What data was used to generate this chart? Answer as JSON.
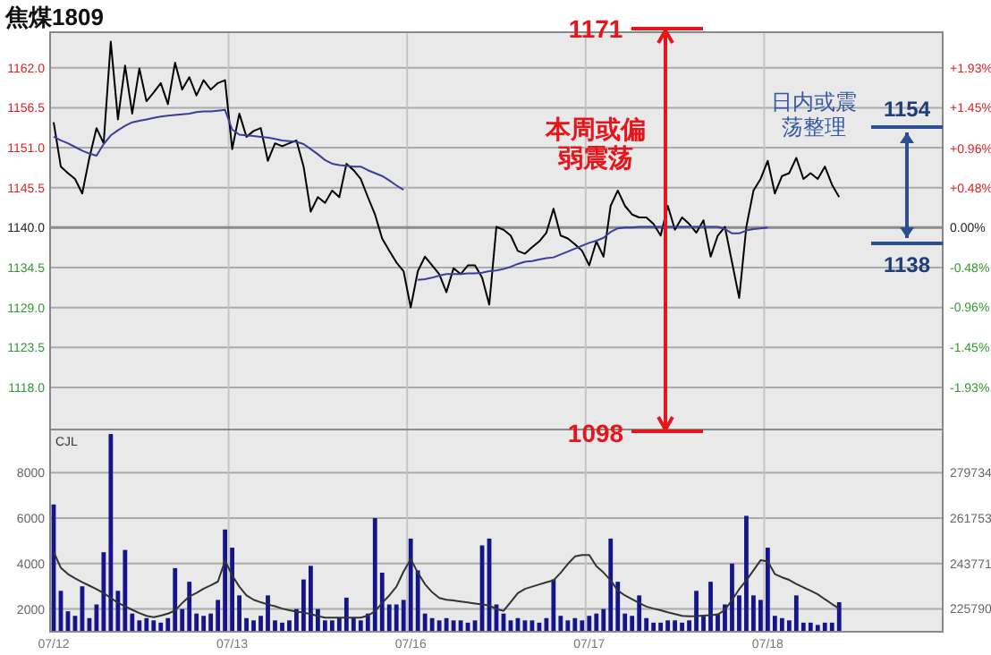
{
  "chart_data": [
    {
      "type": "line",
      "title": "焦煤1809",
      "categories": [
        null,
        null,
        null,
        null,
        null,
        null,
        null,
        null,
        null,
        null,
        null,
        null,
        null,
        null,
        null,
        null,
        null,
        null,
        null,
        null,
        null,
        null,
        null,
        null,
        null,
        null,
        null,
        null,
        null,
        null,
        null,
        null,
        null,
        null,
        null,
        null,
        null,
        null,
        null,
        null,
        null,
        null,
        null,
        null,
        null,
        null,
        null,
        null,
        null,
        null,
        null,
        null,
        null,
        null,
        null,
        null,
        null,
        null,
        null,
        null,
        null,
        null,
        null,
        null,
        null,
        null,
        null,
        null,
        null,
        null,
        null,
        null,
        null,
        null,
        null,
        null,
        null,
        null,
        null,
        null,
        null,
        null,
        null,
        null,
        null,
        null,
        null,
        null,
        null,
        null,
        null,
        null,
        null,
        null,
        null,
        null,
        null,
        null,
        null,
        null,
        null,
        null,
        null,
        null,
        null,
        null,
        null,
        null,
        null,
        null,
        null,
        null,
        null,
        null,
        null,
        null,
        null,
        null,
        null,
        null,
        null,
        null,
        null,
        null,
        null
      ],
      "ylim": [
        1112.2,
        1166.9
      ],
      "yticks": [
        {
          "value": 1162,
          "label": "1162.0"
        },
        {
          "value": 1156.5,
          "label": "1156.5"
        },
        {
          "value": 1151,
          "label": "1151.0"
        },
        {
          "value": 1145.5,
          "label": "1145.5"
        },
        {
          "value": 1140,
          "label": "1140.0"
        },
        {
          "value": 1134.5,
          "label": "1134.5"
        },
        {
          "value": 1129,
          "label": "1129.0"
        },
        {
          "value": 1123.5,
          "label": "1123.5"
        },
        {
          "value": 1118,
          "label": "1118.0"
        }
      ],
      "y2lim": [
        -2.44,
        2.36
      ],
      "y2ticks": [
        {
          "value": 1.93,
          "label": "+1.93%"
        },
        {
          "value": 1.45,
          "label": "+1.45%"
        },
        {
          "value": 0.96,
          "label": "+0.96%"
        },
        {
          "value": 0.48,
          "label": "+0.48%"
        },
        {
          "value": 0,
          "label": "0.00%"
        },
        {
          "value": -0.48,
          "label": "-0.48%"
        },
        {
          "value": -0.96,
          "label": "-0.96%"
        },
        {
          "value": -1.45,
          "label": "-1.45%"
        },
        {
          "value": -1.93,
          "label": "-1.93%"
        }
      ],
      "grid": true,
      "ref_lines": [
        {
          "axis": "y",
          "value": 1140,
          "color": "#8c8c8c"
        }
      ],
      "annotations": [
        "1171",
        "本周或偏弱震荡",
        "1098",
        "日内或震荡整理",
        "1154",
        "1138"
      ],
      "series": [
        {
          "color": "#000000",
          "values": [
            1154.5,
            1148.4,
            1147.5,
            1146.7,
            1144.7,
            1149.6,
            1153.7,
            1151.6,
            1165.6,
            1154.9,
            1162.3,
            1155.7,
            1161.9,
            1157.4,
            1158.6,
            1159.9,
            1157.0,
            1162.7,
            1159.0,
            1160.7,
            1158.2,
            1160.3,
            1159.0,
            1159.9,
            1160.3,
            1150.8,
            1155.7,
            1152.5,
            1153.3,
            1153.7,
            1149.2,
            1151.6,
            1151.2,
            1151.6,
            1152.0,
            1148.4,
            1142.2,
            1144.2,
            1143.4,
            1145.1,
            1144.2,
            1148.8,
            1147.9,
            1146.7,
            1144.2,
            1141.8,
            1138.5,
            1136.8,
            1135.2,
            1134.0,
            1129.0,
            1134.0,
            1136.0,
            1134.8,
            1133.6,
            1131.1,
            1134.4,
            1133.6,
            1134.8,
            1134.8,
            1133.1,
            1129.4,
            1140.1,
            1139.7,
            1138.9,
            1136.8,
            1136.4,
            1137.3,
            1138.1,
            1139.3,
            1142.6,
            1138.9,
            1138.5,
            1137.7,
            1136.8,
            1134.8,
            1138.1,
            1136.0,
            1143.0,
            1145.1,
            1143.0,
            1141.8,
            1141.4,
            1141.4,
            1140.5,
            1138.9,
            1143.0,
            1139.7,
            1141.4,
            1140.5,
            1139.3,
            1141.0,
            1136.0,
            1138.9,
            1140.1,
            1135.2,
            1130.3,
            1140.1,
            1145.1,
            1146.7,
            1149.2,
            1144.7,
            1147.1,
            1147.5,
            1149.6,
            1146.7,
            1147.5,
            1146.7,
            1148.4,
            1145.9,
            1144.2,
            null,
            null,
            null,
            null,
            null,
            null,
            null,
            null,
            null,
            null,
            null,
            null,
            null,
            null
          ]
        },
        {
          "color": "#3c3c9c",
          "values": [
            1152.5,
            1152.0,
            1151.6,
            1151.1,
            1150.6,
            1150.2,
            1149.9,
            1151.5,
            1152.7,
            1153.4,
            1154.0,
            1154.5,
            1154.7,
            1154.9,
            1155.1,
            1155.3,
            1155.4,
            1155.5,
            1155.6,
            1155.7,
            1155.9,
            1156.0,
            1156.0,
            1156.1,
            1156.2,
            1153.5,
            1152.8,
            1152.7,
            1152.6,
            1152.5,
            1152.4,
            1152.2,
            1152.0,
            1151.9,
            1151.8,
            1151.5,
            1150.8,
            1150.1,
            1149.3,
            1148.8,
            1148.6,
            1148.5,
            1148.4,
            1148.4,
            1147.9,
            1147.5,
            1147.1,
            1146.5,
            1145.8,
            1145.2,
            null,
            1132.8,
            1132.9,
            1133.1,
            1133.4,
            1133.6,
            1133.6,
            1133.6,
            1133.7,
            1133.7,
            1133.8,
            1134.0,
            1134.1,
            1134.3,
            1134.6,
            1135.0,
            1135.3,
            1135.4,
            1135.6,
            1135.8,
            1135.9,
            1136.3,
            1136.7,
            1137.1,
            1137.5,
            1137.9,
            1138.2,
            1138.6,
            1139.4,
            1139.9,
            1140.0,
            1140.0,
            1140.1,
            1140.1,
            1140.1,
            1140.1,
            1140.1,
            1140.1,
            1140.1,
            1140.1,
            1140.1,
            1140.1,
            1140.1,
            1140.1,
            1139.8,
            1139.2,
            1139.2,
            1139.6,
            1139.8,
            1139.9,
            1140.0,
            null,
            null,
            null,
            null,
            null,
            null,
            null,
            null,
            null,
            null,
            null,
            null,
            null,
            null,
            null,
            null,
            null,
            null,
            null,
            null,
            null,
            null,
            null,
            null
          ]
        }
      ]
    },
    {
      "type": "bar",
      "categories": [
        "07/12",
        null,
        null,
        null,
        null,
        null,
        null,
        null,
        null,
        null,
        null,
        null,
        null,
        null,
        null,
        null,
        null,
        null,
        null,
        null,
        null,
        null,
        null,
        null,
        null,
        "07/13",
        null,
        null,
        null,
        null,
        null,
        null,
        null,
        null,
        null,
        null,
        null,
        null,
        null,
        null,
        null,
        null,
        null,
        null,
        null,
        null,
        null,
        null,
        null,
        null,
        "07/16",
        null,
        null,
        null,
        null,
        null,
        null,
        null,
        null,
        null,
        null,
        null,
        null,
        null,
        null,
        null,
        null,
        null,
        null,
        null,
        null,
        null,
        null,
        null,
        null,
        "07/17",
        null,
        null,
        null,
        null,
        null,
        null,
        null,
        null,
        null,
        null,
        null,
        null,
        null,
        null,
        null,
        null,
        null,
        null,
        null,
        null,
        null,
        null,
        null,
        null,
        "07/18",
        null,
        null,
        null,
        null,
        null,
        null,
        null,
        null,
        null,
        null,
        null,
        null,
        null,
        null,
        null,
        null,
        null,
        null,
        null,
        null,
        null,
        null,
        null,
        null
      ],
      "ylim": [
        1000,
        9900
      ],
      "yticks": [
        2000,
        4000,
        6000,
        8000
      ],
      "y2lim": [
        216600,
        296900
      ],
      "y2ticks": [
        225790,
        243771,
        261753,
        279734
      ],
      "grid": true,
      "annotations": [
        "CJL"
      ],
      "series": [
        {
          "color": "#14148c",
          "values": [
            6600,
            2800,
            1900,
            1700,
            3000,
            1600,
            2200,
            4500,
            9700,
            2800,
            4600,
            1800,
            1500,
            1600,
            1500,
            1400,
            1600,
            3800,
            2000,
            3200,
            1800,
            1700,
            1800,
            2400,
            5500,
            4700,
            2600,
            1600,
            1500,
            1700,
            2600,
            1500,
            1400,
            1500,
            2000,
            3300,
            3900,
            2000,
            1500,
            1500,
            1600,
            2500,
            1600,
            1500,
            1800,
            6000,
            3600,
            2200,
            2200,
            2400,
            5100,
            3700,
            1800,
            1600,
            1500,
            1600,
            1500,
            1500,
            1400,
            1500,
            4800,
            5100,
            2200,
            1800,
            1500,
            1600,
            1500,
            1500,
            1400,
            1600,
            3300,
            1700,
            1500,
            1600,
            1500,
            1700,
            1800,
            2000,
            5100,
            3200,
            1800,
            1700,
            2600,
            1600,
            1400,
            1400,
            1500,
            1500,
            1400,
            1500,
            2800,
            1700,
            3200,
            1800,
            2200,
            4000,
            2600,
            6100,
            2600,
            2400,
            4700,
            1700,
            1600,
            1500,
            2600,
            1400,
            1400,
            1300,
            1400,
            1400,
            2300,
            null,
            null,
            null,
            null,
            null,
            null,
            null,
            null,
            null,
            null,
            null,
            null,
            null,
            null
          ]
        },
        {
          "type": "line",
          "axis": "y2",
          "color": "#333333",
          "values": [
            248300,
            242000,
            239500,
            237800,
            236300,
            234900,
            233500,
            231900,
            230000,
            228100,
            226700,
            225300,
            224000,
            222900,
            222400,
            223000,
            223800,
            225000,
            228000,
            230600,
            232000,
            233700,
            235000,
            236500,
            244800,
            239000,
            234500,
            231000,
            229300,
            228300,
            227400,
            226700,
            225800,
            225100,
            224600,
            224200,
            223600,
            222800,
            222200,
            222200,
            222200,
            222200,
            222200,
            222200,
            223000,
            224700,
            228000,
            231000,
            234500,
            240500,
            245500,
            240000,
            235500,
            232300,
            230000,
            229300,
            229000,
            228600,
            228200,
            227800,
            227400,
            227000,
            225600,
            224900,
            228400,
            231900,
            233600,
            234500,
            235400,
            236200,
            237000,
            240000,
            243500,
            246500,
            247100,
            247100,
            242600,
            240100,
            237000,
            233000,
            231000,
            229500,
            228000,
            226600,
            225800,
            225100,
            224300,
            223600,
            222900,
            222700,
            222800,
            223000,
            223200,
            223400,
            225300,
            229200,
            233500,
            237000,
            241000,
            245000,
            244500,
            239500,
            238200,
            237200,
            235600,
            234200,
            232900,
            231500,
            229500,
            227600,
            225800,
            null,
            null,
            null,
            null,
            null,
            null,
            null,
            null,
            null,
            null,
            null,
            null,
            null,
            null
          ]
        }
      ]
    }
  ]
}
